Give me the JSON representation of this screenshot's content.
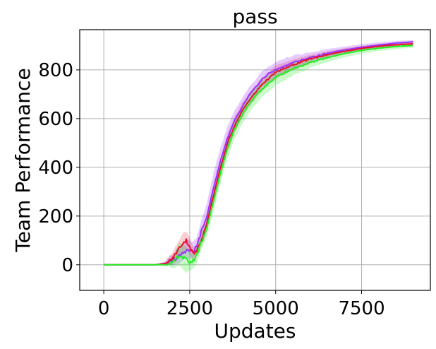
{
  "chart_data": {
    "type": "line",
    "title": "pass",
    "xlabel": "Updates",
    "ylabel": "Team Performance",
    "xlim": [
      -700,
      9500
    ],
    "ylim": [
      -105,
      965
    ],
    "xticks": [
      0,
      2500,
      5000,
      7500
    ],
    "xtick_labels": [
      "0",
      "2500",
      "5000",
      "7500"
    ],
    "yticks": [
      0,
      200,
      400,
      600,
      800
    ],
    "ytick_labels": [
      "0",
      "200",
      "400",
      "600",
      "800"
    ],
    "grid": true,
    "legend": "none",
    "series": [
      {
        "color": "#9b30ff",
        "band_alpha": 0.25,
        "x": [
          0,
          1500,
          1800,
          2000,
          2200,
          2400,
          2600,
          2700,
          2800,
          3000,
          3200,
          3400,
          3600,
          3800,
          4000,
          4200,
          4400,
          4600,
          4800,
          5000,
          5500,
          6000,
          6500,
          7000,
          7500,
          8000,
          8500,
          9000
        ],
        "values": [
          0,
          0,
          5,
          15,
          35,
          60,
          55,
          75,
          120,
          200,
          320,
          430,
          520,
          590,
          640,
          690,
          725,
          760,
          785,
          800,
          830,
          850,
          868,
          882,
          893,
          902,
          910,
          915
        ],
        "lower": [
          0,
          0,
          0,
          0,
          10,
          30,
          30,
          55,
          90,
          160,
          270,
          380,
          475,
          550,
          605,
          655,
          695,
          730,
          755,
          770,
          805,
          830,
          852,
          868,
          880,
          892,
          900,
          907
        ],
        "upper": [
          0,
          0,
          15,
          40,
          70,
          100,
          90,
          110,
          160,
          250,
          380,
          480,
          565,
          630,
          675,
          720,
          755,
          790,
          810,
          830,
          855,
          870,
          885,
          895,
          905,
          912,
          918,
          922
        ]
      },
      {
        "color": "#e8102a",
        "band_alpha": 0.2,
        "x": [
          0,
          1500,
          1800,
          2000,
          2200,
          2300,
          2400,
          2500,
          2600,
          2700,
          2800,
          3000,
          3200,
          3400,
          3600,
          3800,
          4000,
          4200,
          4400,
          4600,
          4800,
          5000,
          5500,
          6000,
          6500,
          7000,
          7500,
          8000,
          8500,
          9000
        ],
        "values": [
          0,
          0,
          5,
          25,
          70,
          90,
          100,
          75,
          45,
          55,
          90,
          170,
          290,
          400,
          500,
          570,
          625,
          670,
          705,
          740,
          765,
          790,
          820,
          845,
          862,
          876,
          888,
          897,
          903,
          907
        ],
        "lower": [
          0,
          0,
          0,
          5,
          40,
          55,
          65,
          45,
          25,
          35,
          65,
          140,
          255,
          365,
          465,
          540,
          595,
          645,
          680,
          715,
          745,
          765,
          800,
          828,
          848,
          864,
          877,
          888,
          895,
          900
        ],
        "upper": [
          0,
          0,
          12,
          50,
          100,
          125,
          135,
          110,
          70,
          80,
          115,
          200,
          325,
          435,
          535,
          600,
          655,
          695,
          730,
          765,
          790,
          815,
          840,
          860,
          876,
          888,
          898,
          906,
          911,
          914
        ]
      },
      {
        "color": "#22ee22",
        "band_alpha": 0.25,
        "x": [
          0,
          1500,
          1800,
          2000,
          2100,
          2200,
          2300,
          2400,
          2500,
          2600,
          2700,
          2800,
          3000,
          3200,
          3400,
          3600,
          3800,
          4000,
          4200,
          4400,
          4600,
          4800,
          5000,
          5500,
          6000,
          6500,
          7000,
          7500,
          8000,
          8500,
          9000
        ],
        "values": [
          0,
          0,
          0,
          5,
          25,
          40,
          30,
          20,
          10,
          15,
          40,
          80,
          150,
          265,
          380,
          480,
          555,
          610,
          655,
          690,
          720,
          745,
          770,
          805,
          830,
          850,
          867,
          880,
          889,
          896,
          900
        ],
        "lower": [
          0,
          0,
          0,
          -10,
          -5,
          0,
          -15,
          -30,
          -20,
          -10,
          10,
          50,
          115,
          225,
          340,
          440,
          520,
          575,
          620,
          660,
          690,
          715,
          740,
          780,
          810,
          832,
          852,
          867,
          878,
          886,
          892
        ],
        "upper": [
          0,
          0,
          5,
          25,
          60,
          90,
          80,
          65,
          45,
          40,
          70,
          110,
          185,
          300,
          420,
          515,
          590,
          640,
          685,
          720,
          750,
          775,
          795,
          828,
          850,
          868,
          882,
          893,
          900,
          905,
          908
        ]
      }
    ]
  }
}
